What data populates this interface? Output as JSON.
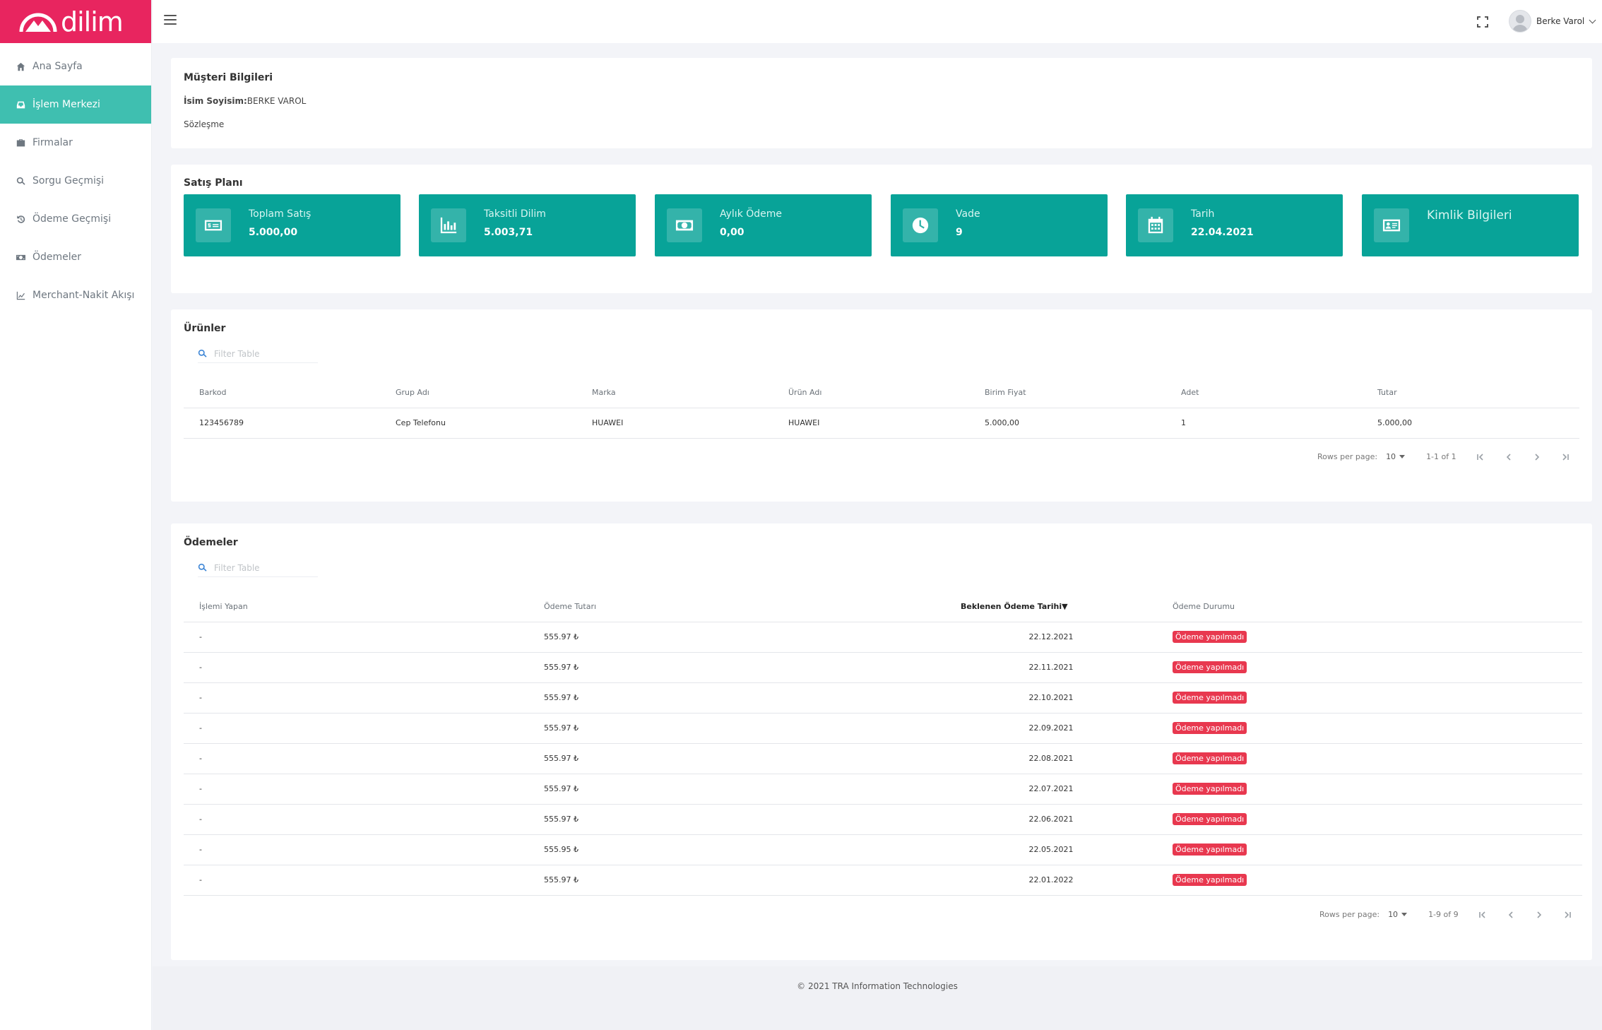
{
  "brand": {
    "name": "dilim",
    "color": "#e8255f"
  },
  "sidebar": {
    "items": [
      {
        "label": "Ana Sayfa",
        "icon": "home-icon",
        "active": false
      },
      {
        "label": "İşlem Merkezi",
        "icon": "inbox-icon",
        "active": true
      },
      {
        "label": "Firmalar",
        "icon": "briefcase-icon",
        "active": false
      },
      {
        "label": "Sorgu Geçmişi",
        "icon": "search-icon",
        "active": false
      },
      {
        "label": "Ödeme Geçmişi",
        "icon": "history-icon",
        "active": false
      },
      {
        "label": "Ödemeler",
        "icon": "money-icon",
        "active": false
      },
      {
        "label": "Merchant-Nakit Akışı",
        "icon": "chart-line-icon",
        "active": false
      }
    ]
  },
  "header": {
    "user_name": "Berke Varol"
  },
  "customer": {
    "title": "Müşteri Bilgileri",
    "name_label": "İsim Soyisim:",
    "name_value": "BERKE VAROL",
    "contract_label": "Sözleşme"
  },
  "plan": {
    "title": "Satış Planı",
    "stats": [
      {
        "label": "Toplam Satış",
        "value": "5.000,00",
        "icon": "cash-icon"
      },
      {
        "label": "Taksitli Dilim",
        "value": "5.003,71",
        "icon": "bar-chart-icon"
      },
      {
        "label": "Aylık Ödeme",
        "value": "0,00",
        "icon": "banknote-icon"
      },
      {
        "label": "Vade",
        "value": "9",
        "icon": "clock-icon"
      },
      {
        "label": "Tarih",
        "value": "22.04.2021",
        "icon": "calendar-icon"
      },
      {
        "label": "Kimlik Bilgileri",
        "value": "",
        "icon": "id-card-icon"
      }
    ],
    "accent": "#08a398"
  },
  "products": {
    "title": "Ürünler",
    "filter_placeholder": "Filter Table",
    "columns": [
      "Barkod",
      "Grup Adı",
      "Marka",
      "Ürün Adı",
      "Birim Fiyat",
      "Adet",
      "Tutar"
    ],
    "rows": [
      [
        "123456789",
        "Cep Telefonu",
        "HUAWEI",
        "HUAWEI",
        "5.000,00",
        "1",
        "5.000,00"
      ]
    ],
    "pager": {
      "rows_label": "Rows per page:",
      "rows_value": "10",
      "range": "1-1 of 1"
    }
  },
  "payments": {
    "title": "Ödemeler",
    "filter_placeholder": "Filter Table",
    "columns": [
      "İşlemi Yapan",
      "Ödeme Tutarı",
      "Beklenen Ödeme Tarihi",
      "Ödeme Durumu"
    ],
    "sort_indicator": "▼",
    "rows": [
      [
        "-",
        "555.97 ₺",
        "22.12.2021",
        "Ödeme yapılmadı"
      ],
      [
        "-",
        "555.97 ₺",
        "22.11.2021",
        "Ödeme yapılmadı"
      ],
      [
        "-",
        "555.97 ₺",
        "22.10.2021",
        "Ödeme yapılmadı"
      ],
      [
        "-",
        "555.97 ₺",
        "22.09.2021",
        "Ödeme yapılmadı"
      ],
      [
        "-",
        "555.97 ₺",
        "22.08.2021",
        "Ödeme yapılmadı"
      ],
      [
        "-",
        "555.97 ₺",
        "22.07.2021",
        "Ödeme yapılmadı"
      ],
      [
        "-",
        "555.97 ₺",
        "22.06.2021",
        "Ödeme yapılmadı"
      ],
      [
        "-",
        "555.95 ₺",
        "22.05.2021",
        "Ödeme yapılmadı"
      ],
      [
        "-",
        "555.97 ₺",
        "22.01.2022",
        "Ödeme yapılmadı"
      ]
    ],
    "status_color": "#e8384f",
    "pager": {
      "rows_label": "Rows per page:",
      "rows_value": "10",
      "range": "1-9 of 9"
    }
  },
  "footer": {
    "text": "© 2021 TRA Information Technologies"
  }
}
